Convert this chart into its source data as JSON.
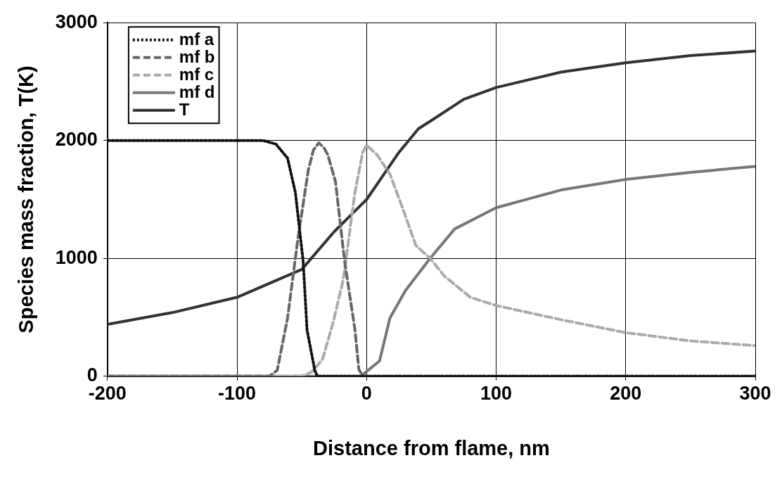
{
  "chart_data": {
    "type": "line",
    "xlabel": "Distance from flame, nm",
    "ylabel": "Species mass fraction, T(K)",
    "xlim": [
      -200,
      300
    ],
    "xticks": [
      -200,
      -100,
      0,
      100,
      200,
      300
    ],
    "ylim": [
      0,
      3000
    ],
    "yticks": [
      0,
      1000,
      2000,
      3000
    ],
    "grid": true,
    "legend": "top left",
    "marker": "none",
    "series": [
      {
        "name": "mf a",
        "color": "#111111",
        "line_style": "dotted",
        "x": [
          -200,
          -80,
          -70,
          -61,
          -55,
          -49,
          -46,
          -40,
          -38,
          300
        ],
        "values": [
          2000,
          2000,
          1970,
          1850,
          1560,
          977,
          395,
          50,
          0,
          0
        ]
      },
      {
        "name": "mf b",
        "color": "#666666",
        "line_style": "dashed",
        "x": [
          -200,
          -75,
          -69,
          -61,
          -53,
          -45,
          -41,
          -37,
          -33,
          -30,
          -24,
          -17,
          -9,
          -6,
          -3,
          300
        ],
        "values": [
          0,
          0,
          50,
          494,
          1170,
          1750,
          1920,
          1980,
          1940,
          1880,
          1650,
          977,
          395,
          60,
          0,
          0
        ]
      },
      {
        "name": "mf c",
        "color": "#aaaaaa",
        "line_style": "dashed",
        "x": [
          -200,
          -50,
          -42,
          -34,
          -26,
          -18,
          -9,
          -3,
          0,
          8,
          18,
          28,
          38,
          49,
          60,
          80,
          100,
          150,
          200,
          250,
          300
        ],
        "values": [
          0,
          0,
          40,
          145,
          450,
          820,
          1560,
          1900,
          1960,
          1880,
          1715,
          1420,
          1110,
          1000,
          850,
          670,
          600,
          480,
          370,
          300,
          260
        ]
      },
      {
        "name": "mf d",
        "color": "#777777",
        "line_style": "solid",
        "x": [
          -200,
          -5,
          0,
          10,
          18,
          30,
          49,
          68,
          100,
          150,
          200,
          250,
          300
        ],
        "values": [
          0,
          0,
          40,
          130,
          494,
          727,
          1000,
          1250,
          1430,
          1580,
          1670,
          1730,
          1780
        ]
      },
      {
        "name": "T",
        "color": "#333333",
        "line_style": "solid",
        "x": [
          -200,
          -150,
          -100,
          -50,
          -25,
          0,
          25,
          40,
          50,
          75,
          100,
          150,
          200,
          250,
          300
        ],
        "values": [
          440,
          540,
          670,
          907,
          1227,
          1500,
          1900,
          2100,
          2170,
          2350,
          2450,
          2580,
          2660,
          2720,
          2760
        ]
      }
    ]
  }
}
